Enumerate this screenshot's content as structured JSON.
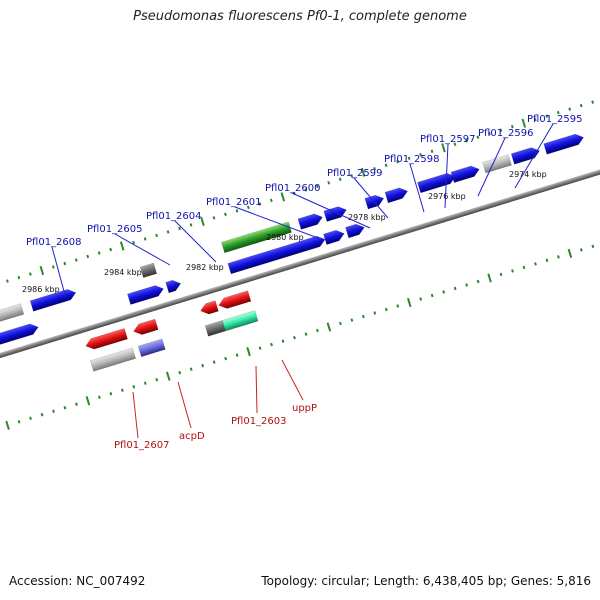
{
  "title": "Pseudomonas fluorescens Pf0-1, complete genome",
  "footer": {
    "accession": "Accession: NC_007492",
    "stats": "Topology: circular; Length: 6,438,405 bp; Genes: 5,816"
  },
  "colors": {
    "backbone": "#7a7a7a",
    "forward_gene": "#1010d8",
    "reverse_gene": "#e01010",
    "rna_gene": "#2a9a2a",
    "pseudogene": "#a8a8a8",
    "tick": "#2a8a2a",
    "forward_label": "#1010b0",
    "reverse_label": "#b01010"
  },
  "kbp_labels": [
    "2986 kbp",
    "2984 kbp",
    "2982 kbp",
    "2980 kbp",
    "2978 kbp",
    "2976 kbp",
    "2974 kbp"
  ],
  "forward_labels": [
    "Pfl01_2608",
    "Pfl01_2605",
    "Pfl01_2604",
    "Pfl01_2601",
    "Pfl01_2600",
    "Pfl01_2599",
    "Pfl01_2598",
    "Pfl01_2597",
    "Pfl01_2596",
    "Pfl01_2595"
  ],
  "reverse_labels": [
    "Pfl01_2607",
    "acpD",
    "Pfl01_2603",
    "uppP"
  ]
}
